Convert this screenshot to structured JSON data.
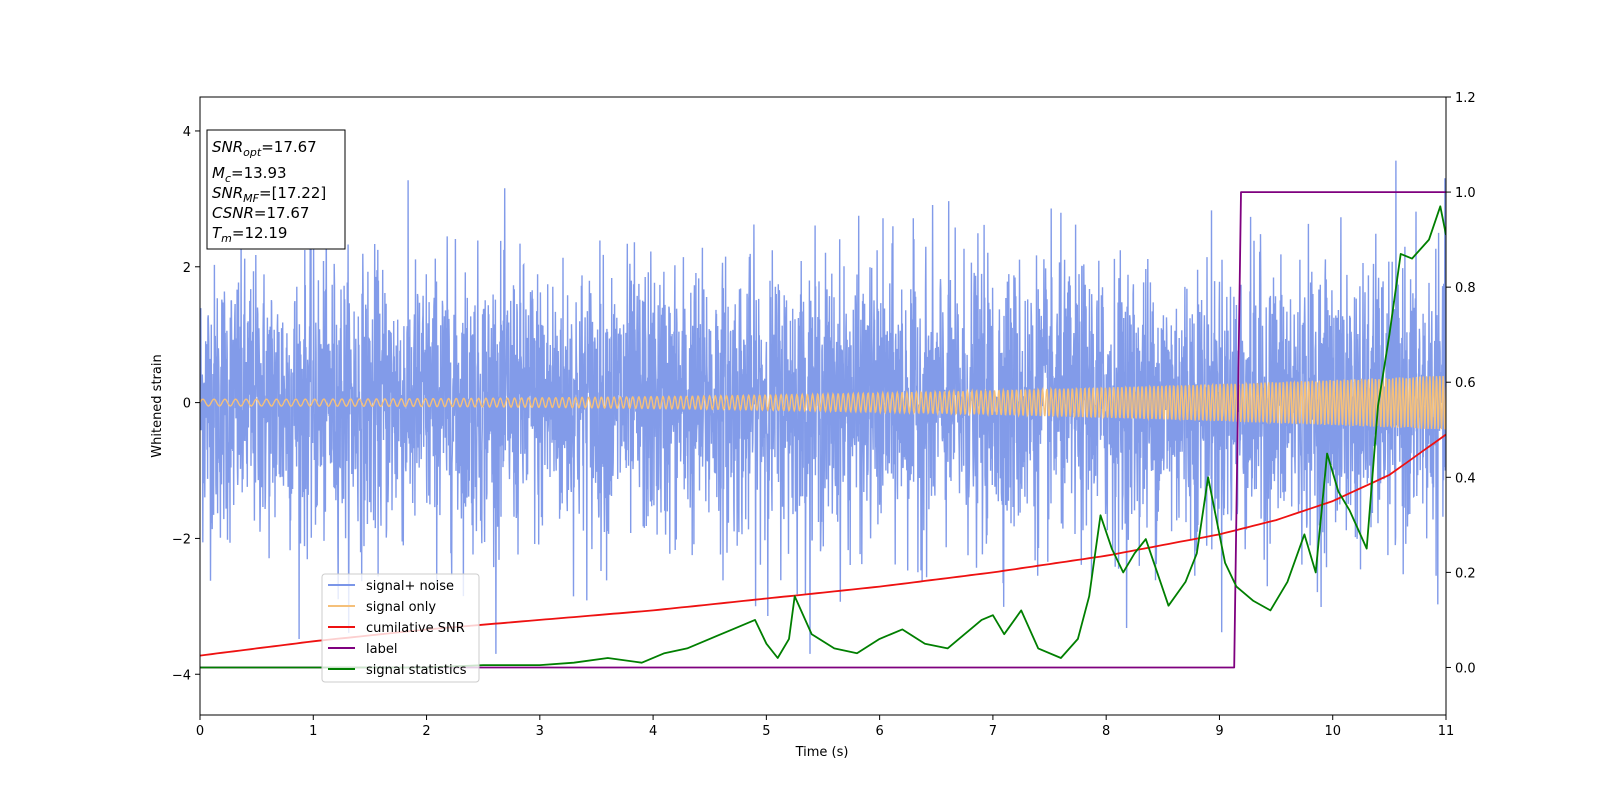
{
  "chart_data": {
    "type": "line",
    "xlabel": "Time (s)",
    "ylabel": "Whitened strain",
    "xlim": [
      0,
      11
    ],
    "ylim": [
      -4.6,
      4.5
    ],
    "y2lim": [
      -0.1,
      1.2
    ],
    "x_ticks": [
      "0",
      "1",
      "2",
      "3",
      "4",
      "5",
      "6",
      "7",
      "8",
      "9",
      "10",
      "11"
    ],
    "y_ticks": [
      "4",
      "2",
      "0",
      "−2",
      "−4"
    ],
    "y2_ticks": [
      "1.2",
      "1.0",
      "0.8",
      "0.6",
      "0.4",
      "0.2",
      "0.0"
    ],
    "grid": false,
    "legend_position": "lower-left",
    "info_box": {
      "snr_opt": {
        "sym": "SNR",
        "sub": "opt",
        "value": "=17.67"
      },
      "mc": {
        "sym": "M",
        "sub": "c",
        "value": "=13.93"
      },
      "snr_mf": {
        "sym": "SNR",
        "sub": "MF",
        "value": "=[17.22]"
      },
      "csnr": {
        "sym": "CSNR",
        "sub": "",
        "value": "=17.67"
      },
      "tm": {
        "sym": "T",
        "sub": "m",
        "value": "=12.19"
      }
    },
    "series": [
      {
        "name": "signal+ noise",
        "axis": "left",
        "color": "#7b96e8",
        "description": "whitened noisy strain, roughly Gaussian with std ~1.0 around 0, extremes about ±3.7",
        "noise_std": 1.0
      },
      {
        "name": "signal only",
        "axis": "left",
        "color": "#f5c07a",
        "description": "chirp oscillation growing in amplitude and frequency",
        "amplitude_start": 0.05,
        "amplitude_end": 0.4
      },
      {
        "name": "cumilative SNR",
        "axis": "right",
        "color": "#ee1111",
        "x": [
          0,
          1,
          2,
          3,
          4,
          5,
          6,
          7,
          8,
          9,
          9.5,
          10,
          10.5,
          11
        ],
        "y": [
          0.025,
          0.055,
          0.08,
          0.1,
          0.12,
          0.145,
          0.17,
          0.2,
          0.235,
          0.28,
          0.31,
          0.35,
          0.405,
          0.49
        ]
      },
      {
        "name": "label",
        "axis": "right",
        "color": "#7f007f",
        "x": [
          0,
          9.13,
          9.19,
          11
        ],
        "y": [
          0.0,
          0.0,
          1.0,
          1.0
        ]
      },
      {
        "name": "signal statistics",
        "axis": "right",
        "color": "#007f00",
        "x": [
          0,
          0.5,
          1,
          1.5,
          2,
          2.5,
          2.7,
          3,
          3.3,
          3.6,
          3.9,
          4.1,
          4.3,
          4.5,
          4.7,
          4.9,
          5.0,
          5.1,
          5.2,
          5.25,
          5.4,
          5.6,
          5.8,
          6.0,
          6.2,
          6.4,
          6.6,
          6.8,
          6.9,
          7.0,
          7.1,
          7.25,
          7.4,
          7.6,
          7.75,
          7.85,
          7.95,
          8.05,
          8.15,
          8.25,
          8.35,
          8.45,
          8.55,
          8.7,
          8.8,
          8.9,
          9.05,
          9.15,
          9.3,
          9.45,
          9.6,
          9.75,
          9.85,
          9.95,
          10.05,
          10.15,
          10.3,
          10.4,
          10.5,
          10.6,
          10.7,
          10.85,
          10.95,
          11.0
        ],
        "y": [
          0.0,
          0.0,
          0.0,
          0.0,
          0.0,
          0.005,
          0.005,
          0.005,
          0.01,
          0.02,
          0.01,
          0.03,
          0.04,
          0.06,
          0.08,
          0.1,
          0.05,
          0.02,
          0.06,
          0.15,
          0.07,
          0.04,
          0.03,
          0.06,
          0.08,
          0.05,
          0.04,
          0.08,
          0.1,
          0.11,
          0.07,
          0.12,
          0.04,
          0.02,
          0.06,
          0.15,
          0.32,
          0.25,
          0.2,
          0.24,
          0.27,
          0.2,
          0.13,
          0.18,
          0.24,
          0.4,
          0.22,
          0.17,
          0.14,
          0.12,
          0.18,
          0.28,
          0.2,
          0.45,
          0.37,
          0.33,
          0.25,
          0.55,
          0.7,
          0.87,
          0.86,
          0.9,
          0.97,
          0.91
        ]
      }
    ]
  }
}
